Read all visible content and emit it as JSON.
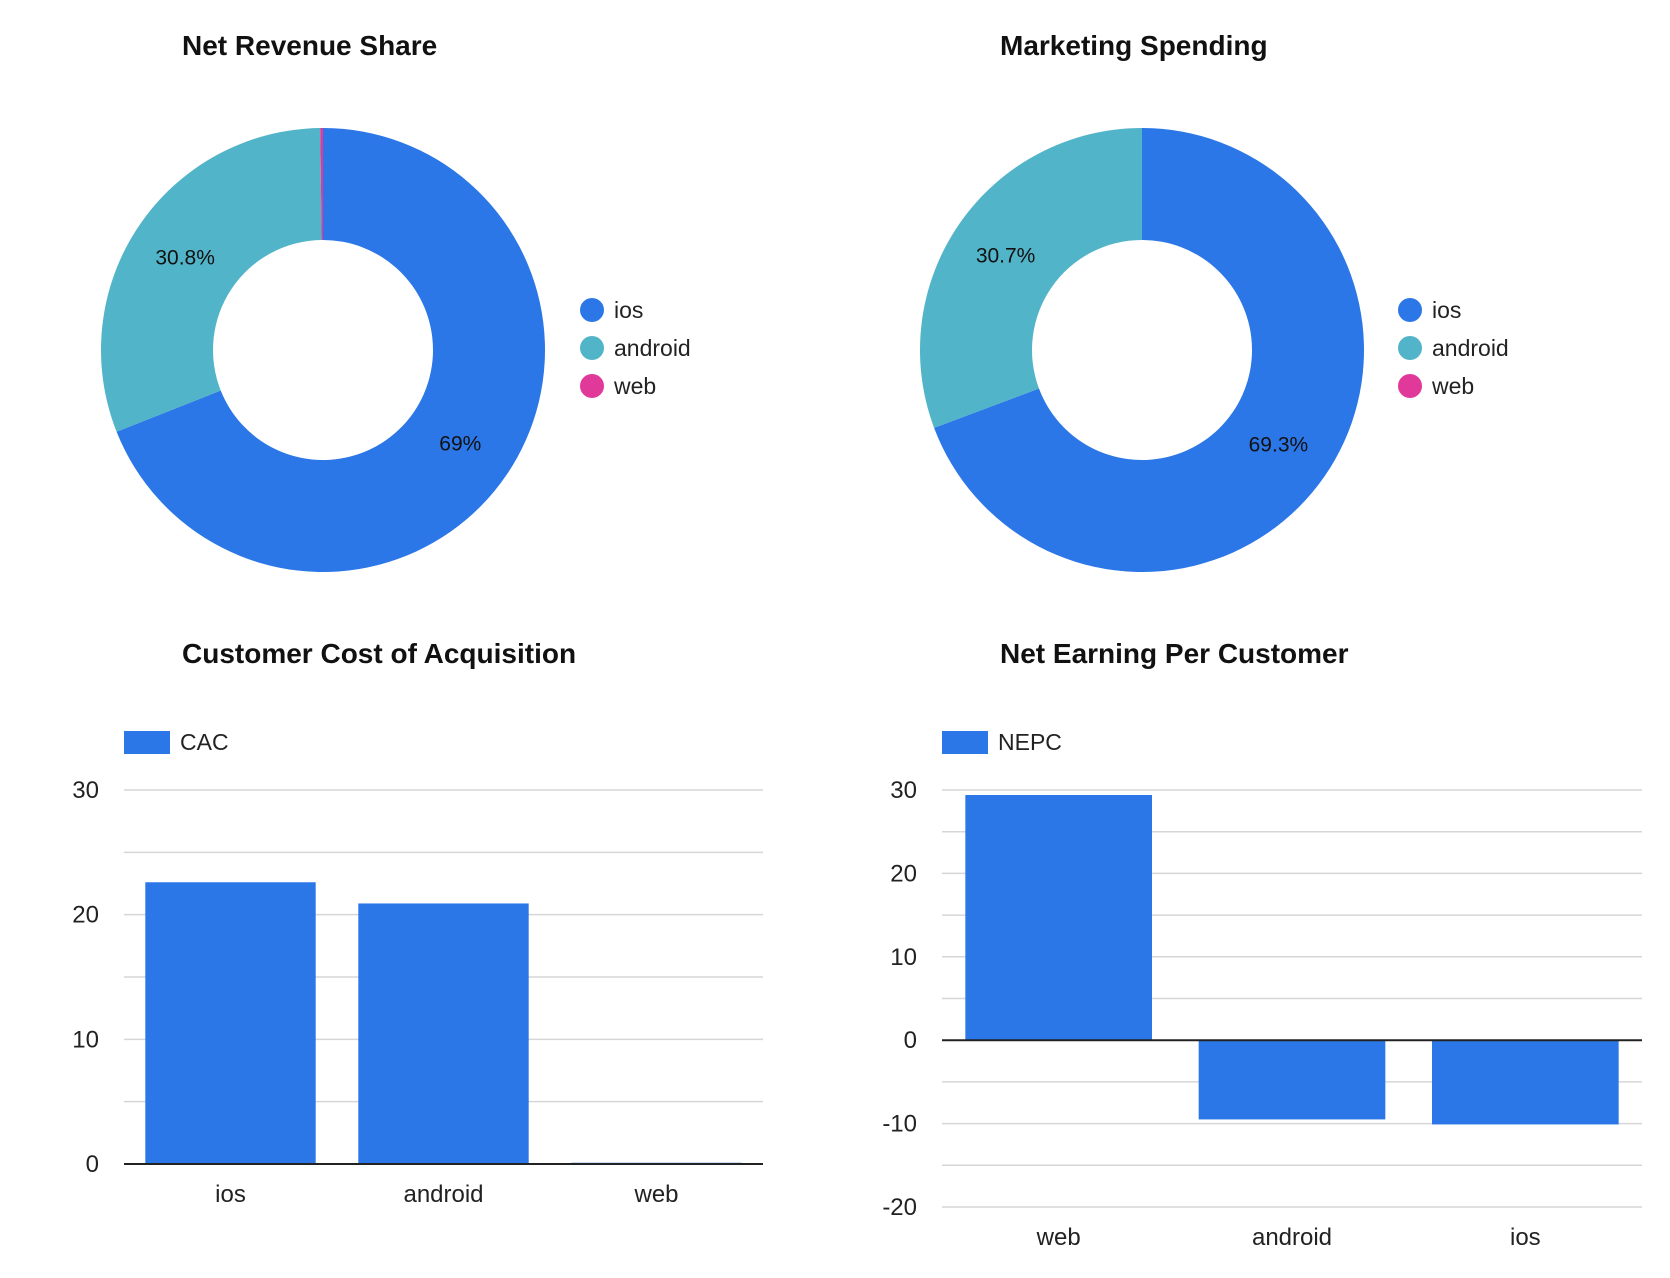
{
  "colors": {
    "ios": "#2c77e7",
    "android": "#52b4c8",
    "web": "#e0399a",
    "grid": "#d6d6d6",
    "axis": "#222222"
  },
  "chart_data": [
    {
      "id": "revenue",
      "type": "pie",
      "title": "Net Revenue Share",
      "labels": [
        "ios",
        "android",
        "web"
      ],
      "values": [
        69.0,
        30.8,
        0.2
      ],
      "slice_labels": [
        "69%",
        "30.8%",
        ""
      ],
      "legend": "right"
    },
    {
      "id": "marketing",
      "type": "pie",
      "title": "Marketing Spending",
      "labels": [
        "ios",
        "android",
        "web"
      ],
      "values": [
        69.3,
        30.7,
        0.0
      ],
      "slice_labels": [
        "69.3%",
        "30.7%",
        ""
      ],
      "legend": "right"
    },
    {
      "id": "cac",
      "type": "bar",
      "title": "Customer Cost of Acquisition",
      "categories": [
        "ios",
        "android",
        "web"
      ],
      "series": [
        {
          "name": "CAC",
          "values": [
            22.6,
            20.9,
            0.1
          ]
        }
      ],
      "ylim": [
        0,
        30
      ],
      "yticks": [
        0,
        10,
        20,
        30
      ],
      "minor_step": 5,
      "legend": "top-left",
      "grid": true
    },
    {
      "id": "nepc",
      "type": "bar",
      "title": "Net Earning Per Customer",
      "categories": [
        "web",
        "android",
        "ios"
      ],
      "series": [
        {
          "name": "NEPC",
          "values": [
            29.4,
            -9.5,
            -10.1
          ]
        }
      ],
      "ylim": [
        -20,
        30
      ],
      "yticks": [
        -20,
        -10,
        0,
        10,
        20,
        30
      ],
      "minor_step": 5,
      "legend": "top-left",
      "grid": true
    }
  ]
}
